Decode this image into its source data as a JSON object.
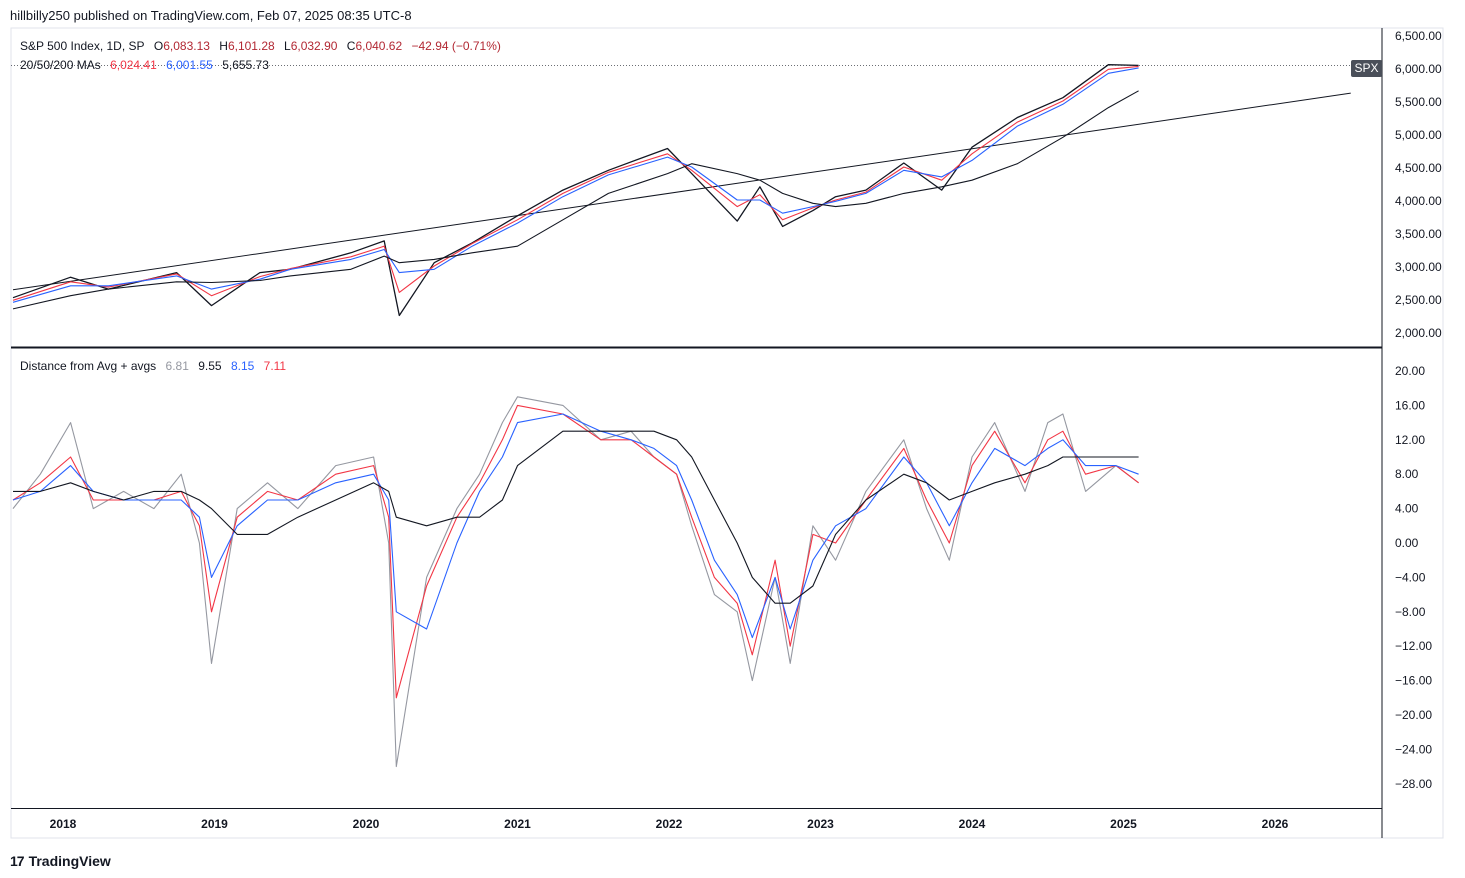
{
  "header": {
    "published": "hillbilly250 published on TradingView.com, Feb 07, 2025 08:35 UTC-8"
  },
  "legend_price": {
    "title": "S&P 500 Index, 1D, SP",
    "o_label": "O",
    "o": "6,083.13",
    "h_label": "H",
    "h": "6,101.28",
    "l_label": "L",
    "l": "6,032.90",
    "c_label": "C",
    "c": "6,040.62",
    "chg": "−42.94 (−0.71%)"
  },
  "legend_ma": {
    "title": "20/50/200 MAs",
    "ma20": "6,024.41",
    "ma50": "6,001.55",
    "ma200": "5,655.73"
  },
  "legend_osc": {
    "title": "Distance from Avg + avgs",
    "v1": "6.81",
    "v2": "9.55",
    "v3": "8.15",
    "v4": "7.11"
  },
  "symbol_tag": "SPX",
  "brand": {
    "logo": "17",
    "name": "TradingView"
  },
  "colors": {
    "price": "#131722",
    "ma20": "#f23645",
    "ma50": "#2962ff",
    "ma200": "#131722",
    "osc_raw": "#9598a1",
    "axis_text": "#131722"
  },
  "chart_data": [
    {
      "type": "line",
      "ylim": [
        2000,
        6500
      ],
      "y_ticks": [
        "6,500.00",
        "6,000.00",
        "5,500.00",
        "5,000.00",
        "4,500.00",
        "4,000.00",
        "3,500.00",
        "3,000.00",
        "2,500.00",
        "2,000.00"
      ],
      "x_ticks": [
        "2018",
        "2019",
        "2020",
        "2021",
        "2022",
        "2023",
        "2024",
        "2025",
        "2026"
      ],
      "x": [
        2017.67,
        2018.05,
        2018.3,
        2018.75,
        2018.98,
        2019.3,
        2019.5,
        2019.9,
        2020.12,
        2020.22,
        2020.45,
        2020.7,
        2021.0,
        2021.3,
        2021.6,
        2021.99,
        2022.15,
        2022.45,
        2022.6,
        2022.75,
        2022.95,
        2023.1,
        2023.3,
        2023.55,
        2023.8,
        2024.0,
        2024.3,
        2024.6,
        2024.9,
        2025.1
      ],
      "series": [
        {
          "values": [
            2520,
            2830,
            2650,
            2900,
            2400,
            2900,
            2950,
            3200,
            3380,
            2250,
            3050,
            3350,
            3760,
            4150,
            4450,
            4780,
            4400,
            3680,
            4200,
            3600,
            3840,
            4050,
            4150,
            4560,
            4150,
            4800,
            5250,
            5550,
            6050,
            6040
          ]
        },
        {
          "values": [
            2480,
            2760,
            2680,
            2880,
            2550,
            2840,
            2960,
            3140,
            3300,
            2600,
            3000,
            3340,
            3700,
            4100,
            4420,
            4700,
            4450,
            3900,
            4080,
            3700,
            3880,
            4000,
            4120,
            4500,
            4300,
            4700,
            5180,
            5500,
            5980,
            6024
          ]
        },
        {
          "values": [
            2450,
            2700,
            2700,
            2850,
            2650,
            2800,
            2950,
            3100,
            3250,
            2900,
            2950,
            3300,
            3650,
            4050,
            4380,
            4650,
            4500,
            4000,
            4000,
            3800,
            3900,
            3980,
            4100,
            4450,
            4350,
            4600,
            5120,
            5450,
            5920,
            6001
          ]
        },
        {
          "values": [
            2350,
            2550,
            2650,
            2760,
            2750,
            2780,
            2850,
            2950,
            3150,
            3050,
            3100,
            3200,
            3300,
            3700,
            4100,
            4400,
            4550,
            4400,
            4300,
            4100,
            3950,
            3900,
            3950,
            4100,
            4200,
            4300,
            4550,
            4950,
            5400,
            5655
          ]
        }
      ],
      "trendlines": [
        {
          "from": [
            2017.67,
            2640
          ],
          "to": [
            2026.5,
            5620
          ]
        }
      ]
    },
    {
      "type": "line",
      "ylim": [
        -30,
        22
      ],
      "y_ticks": [
        "20.00",
        "16.00",
        "12.00",
        "8.00",
        "4.00",
        "0.00",
        "−4.00",
        "−8.00",
        "−12.00",
        "−16.00",
        "−20.00",
        "−24.00",
        "−28.00"
      ],
      "x": [
        2017.67,
        2017.85,
        2018.05,
        2018.2,
        2018.4,
        2018.6,
        2018.78,
        2018.9,
        2018.98,
        2019.15,
        2019.35,
        2019.55,
        2019.8,
        2020.05,
        2020.15,
        2020.2,
        2020.4,
        2020.6,
        2020.75,
        2020.9,
        2021.0,
        2021.3,
        2021.55,
        2021.75,
        2021.9,
        2022.05,
        2022.15,
        2022.3,
        2022.45,
        2022.55,
        2022.7,
        2022.8,
        2022.95,
        2023.1,
        2023.3,
        2023.55,
        2023.7,
        2023.85,
        2024.0,
        2024.15,
        2024.35,
        2024.5,
        2024.6,
        2024.75,
        2024.95,
        2025.1
      ],
      "series": [
        {
          "values": [
            4,
            8,
            14,
            4,
            6,
            4,
            8,
            0,
            -14,
            4,
            7,
            4,
            9,
            10,
            0,
            -26,
            -4,
            4,
            8,
            14,
            17,
            16,
            12,
            13,
            10,
            8,
            2,
            -6,
            -8,
            -16,
            -4,
            -14,
            2,
            -2,
            6,
            12,
            4,
            -2,
            10,
            14,
            6,
            14,
            15,
            6,
            9,
            7
          ]
        },
        {
          "values": [
            5,
            7,
            10,
            5,
            5,
            5,
            6,
            2,
            -8,
            3,
            6,
            5,
            8,
            9,
            3,
            -18,
            -5,
            3,
            7,
            12,
            16,
            15,
            12,
            12,
            10,
            8,
            3,
            -4,
            -7,
            -13,
            -2,
            -12,
            1,
            0,
            5,
            11,
            5,
            0,
            9,
            13,
            7,
            12,
            13,
            8,
            9,
            7
          ]
        },
        {
          "values": [
            5,
            6,
            9,
            6,
            5,
            5,
            5,
            3,
            -4,
            2,
            5,
            5,
            7,
            8,
            5,
            -8,
            -10,
            0,
            6,
            10,
            14,
            15,
            13,
            12,
            11,
            9,
            5,
            -2,
            -6,
            -11,
            -4,
            -10,
            -2,
            2,
            4,
            10,
            7,
            2,
            7,
            11,
            9,
            11,
            12,
            9,
            9,
            8
          ]
        },
        {
          "values": [
            6,
            6,
            7,
            6,
            5,
            6,
            6,
            5,
            4,
            1,
            1,
            3,
            5,
            7,
            6,
            3,
            2,
            3,
            3,
            5,
            9,
            13,
            13,
            13,
            13,
            12,
            10,
            5,
            0,
            -4,
            -7,
            -7,
            -5,
            1,
            5,
            8,
            7,
            5,
            6,
            7,
            8,
            9,
            10,
            10,
            10,
            10
          ]
        }
      ]
    }
  ]
}
